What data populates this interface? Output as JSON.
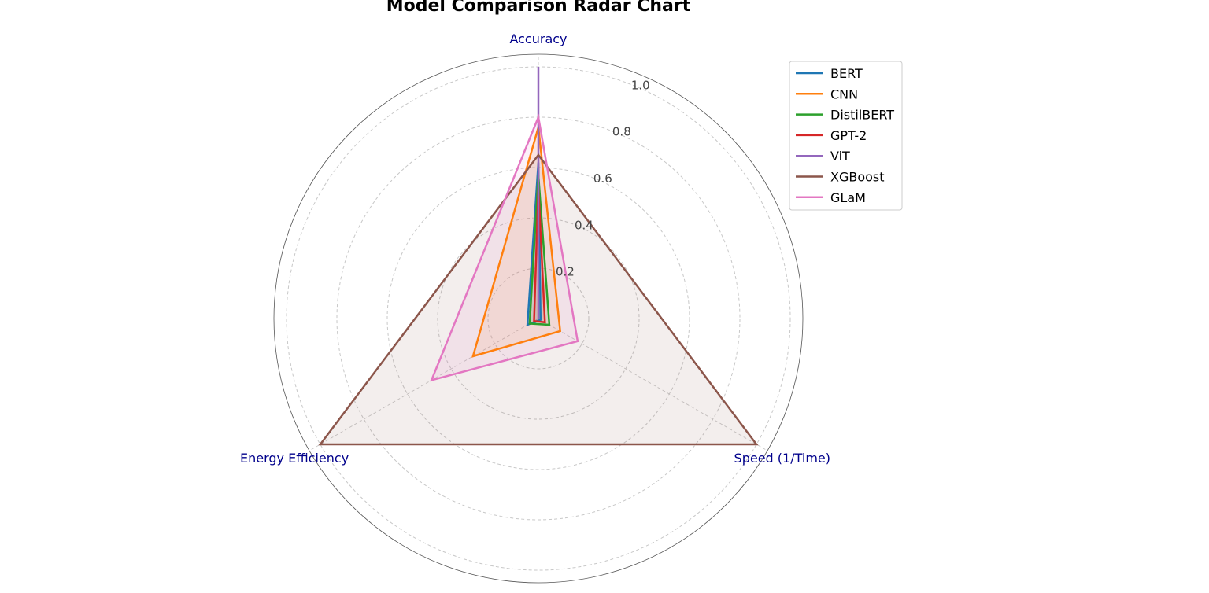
{
  "chart_data": {
    "type": "radar",
    "title": "Model Comparison Radar Chart",
    "axes": [
      "Accuracy",
      "Speed (1/Time)",
      "Energy Efficiency"
    ],
    "rlim": [
      0,
      1.0
    ],
    "rticks": [
      0.2,
      0.4,
      0.6,
      0.8,
      1.0
    ],
    "rtick_labels": [
      "0.2",
      "0.4",
      "0.6",
      "0.8",
      "1.0"
    ],
    "grid": true,
    "legend_position": "top-right",
    "series": [
      {
        "name": "BERT",
        "color": "#1f77b4",
        "values": [
          0.62,
          0.01,
          0.05
        ],
        "fill": true
      },
      {
        "name": "CNN",
        "color": "#ff7f0e",
        "values": [
          0.76,
          0.1,
          0.3
        ],
        "fill": true
      },
      {
        "name": "DistilBERT",
        "color": "#2ca02c",
        "values": [
          0.57,
          0.05,
          0.04
        ],
        "fill": true
      },
      {
        "name": "GPT-2",
        "color": "#d62728",
        "values": [
          0.52,
          0.03,
          0.02
        ],
        "fill": true
      },
      {
        "name": "ViT",
        "color": "#9467bd",
        "values": [
          1.0,
          0.0,
          0.0
        ],
        "fill": false
      },
      {
        "name": "XGBoost",
        "color": "#8c564b",
        "values": [
          0.65,
          1.0,
          1.0
        ],
        "fill": true
      },
      {
        "name": "GLaM",
        "color": "#e377c2",
        "values": [
          0.8,
          0.18,
          0.49
        ],
        "fill": true
      }
    ]
  }
}
